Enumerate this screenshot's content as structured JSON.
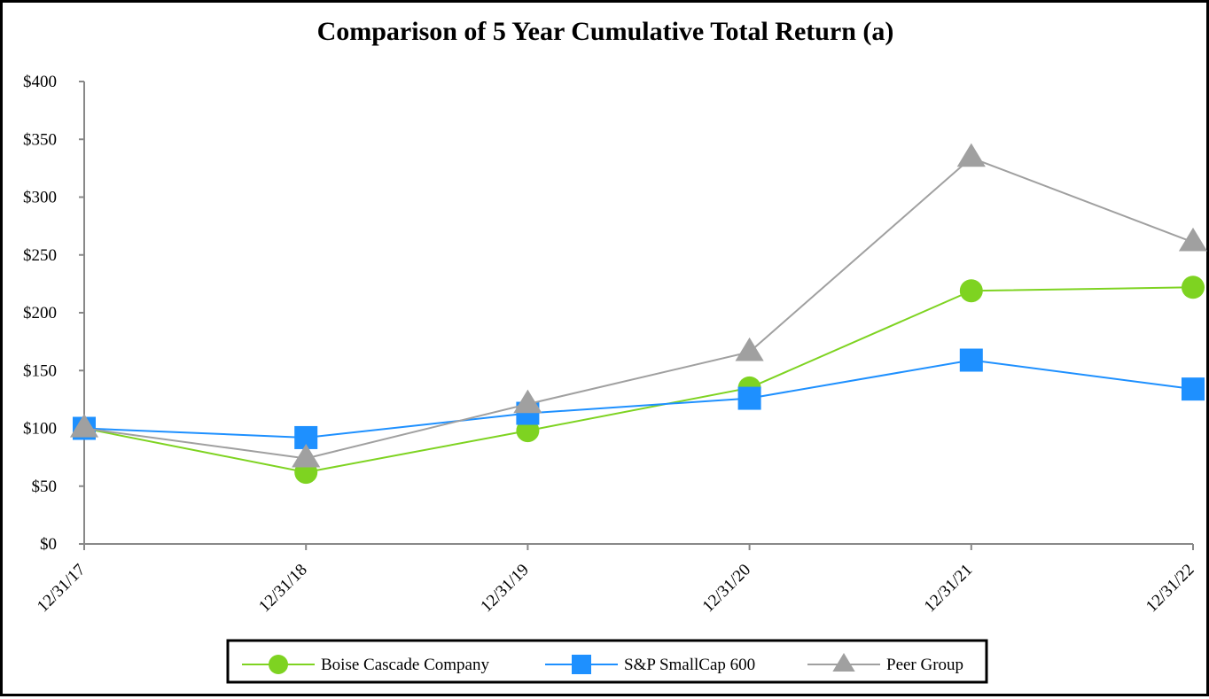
{
  "chart_data": {
    "type": "line",
    "title": "Comparison of 5 Year Cumulative Total Return (a)",
    "xlabel": "",
    "ylabel": "",
    "categories": [
      "12/31/17",
      "12/31/18",
      "12/31/19",
      "12/31/20",
      "12/31/21",
      "12/31/22"
    ],
    "ylim": [
      0,
      400
    ],
    "yticks": [
      0,
      50,
      100,
      150,
      200,
      250,
      300,
      350,
      400
    ],
    "ytick_labels": [
      "$0",
      "$50",
      "$100",
      "$150",
      "$200",
      "$250",
      "$300",
      "$350",
      "$400"
    ],
    "grid": false,
    "legend_position": "bottom",
    "series": [
      {
        "name": "Boise Cascade Company",
        "marker": "circle",
        "color": "#7ed321",
        "values": [
          100,
          62,
          98,
          135,
          219,
          222
        ]
      },
      {
        "name": "S&P SmallCap 600",
        "marker": "square",
        "color": "#1e90ff",
        "values": [
          100,
          92,
          113,
          126,
          159,
          134
        ]
      },
      {
        "name": "Peer Group",
        "marker": "triangle",
        "color": "#a0a0a0",
        "values": [
          100,
          74,
          121,
          166,
          334,
          261
        ]
      }
    ]
  }
}
